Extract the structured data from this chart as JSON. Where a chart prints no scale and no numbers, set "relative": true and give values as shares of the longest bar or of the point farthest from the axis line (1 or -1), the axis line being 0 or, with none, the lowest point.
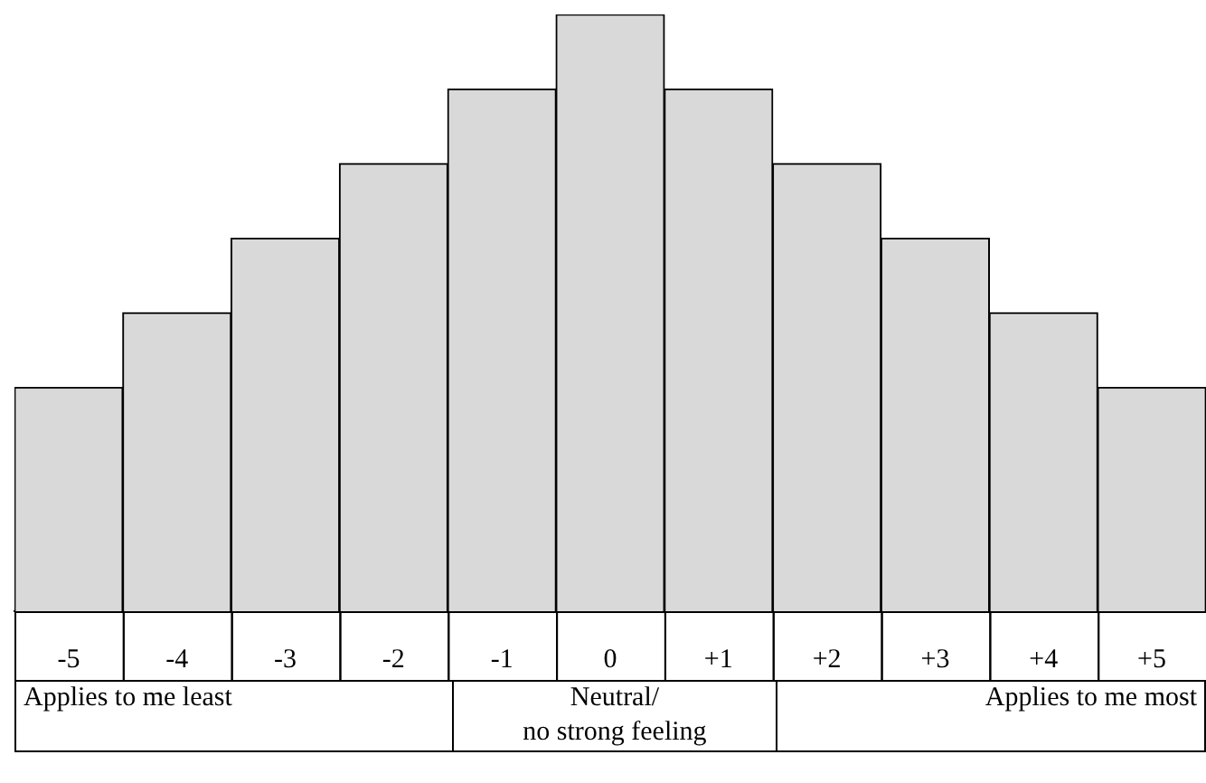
{
  "chart_data": {
    "type": "bar",
    "relative": true,
    "categories": [
      "-5",
      "-4",
      "-3",
      "-2",
      "-1",
      "0",
      "+1",
      "+2",
      "+3",
      "+4",
      "+5"
    ],
    "values": [
      0.375,
      0.5,
      0.625,
      0.75,
      0.875,
      1,
      0.875,
      0.75,
      0.625,
      0.5,
      0.375
    ],
    "color": "#d9d9d9",
    "legend": false,
    "grid": false,
    "annotations": [
      "Applies to me least",
      "Neutral/\nno strong feeling",
      "Applies to me most"
    ]
  }
}
